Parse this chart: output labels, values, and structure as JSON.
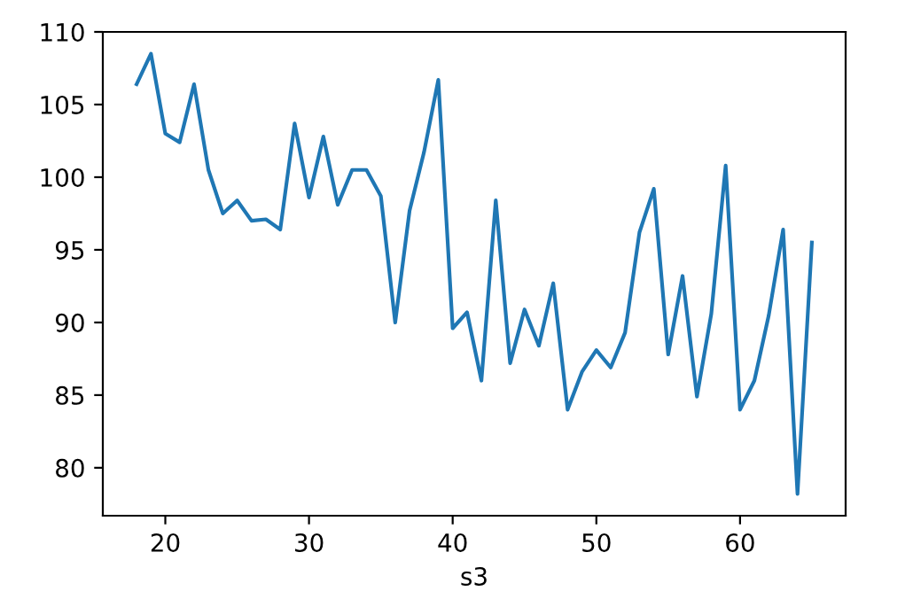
{
  "chart_data": {
    "type": "line",
    "xlabel": "s3",
    "x": [
      18,
      19,
      20,
      21,
      22,
      23,
      24,
      25,
      26,
      27,
      28,
      29,
      30,
      31,
      32,
      33,
      34,
      35,
      36,
      37,
      38,
      39,
      40,
      41,
      42,
      43,
      44,
      45,
      46,
      47,
      48,
      49,
      50,
      51,
      52,
      53,
      54,
      55,
      56,
      57,
      58,
      59,
      60,
      61,
      62,
      63,
      64,
      65
    ],
    "series": [
      {
        "color": "#1f77b4",
        "values": [
          106.4,
          108.5,
          103,
          102.4,
          106.4,
          100.5,
          97.5,
          98.4,
          97,
          97.1,
          96.4,
          103.7,
          98.6,
          102.8,
          98.1,
          100.5,
          100.5,
          98.7,
          90,
          97.7,
          101.7,
          106.7,
          89.6,
          90.7,
          86,
          98.4,
          87.2,
          90.9,
          88.4,
          92.7,
          84,
          86.6,
          88.1,
          86.9,
          89.3,
          96.2,
          99.2,
          87.8,
          93.2,
          84.9,
          90.6,
          100.8,
          84,
          86,
          90.5,
          96.4,
          78.2,
          95.5
        ]
      }
    ],
    "xlim": [
      15.65,
      67.35
    ],
    "ylim": [
      76.7,
      110.0
    ],
    "xticks": [
      20,
      30,
      40,
      50,
      60
    ],
    "yticks": [
      80,
      85,
      90,
      95,
      100,
      105,
      110
    ],
    "grid": false
  }
}
